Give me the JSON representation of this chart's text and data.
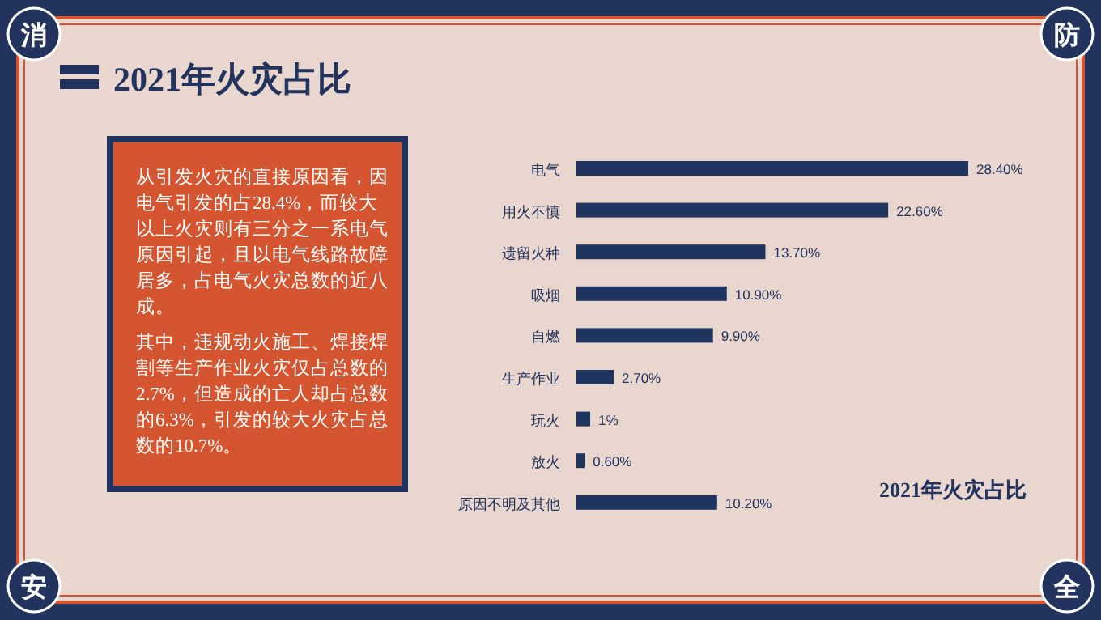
{
  "chart_data": {
    "type": "bar",
    "orientation": "horizontal",
    "title": "2021年火灾占比",
    "categories": [
      "电气",
      "用火不慎",
      "遗留火种",
      "吸烟",
      "自燃",
      "生产作业",
      "玩火",
      "放火",
      "原因不明及其他"
    ],
    "values": [
      28.4,
      22.6,
      13.7,
      10.9,
      9.9,
      2.7,
      1,
      0.6,
      10.2
    ],
    "value_labels": [
      "28.40%",
      "22.60%",
      "13.70%",
      "10.90%",
      "9.90%",
      "2.70%",
      "1%",
      "0.60%",
      "10.20%"
    ],
    "color": "#1f3560",
    "annotations": [
      "从引发火灾的直接原因看，因电气引发的占28.4%，而较大以上火灾则有三分之一系电气原因引起，且以电气线路故障居多，占电气火灾总数的近八成。",
      "其中，违规动火施工、焊接焊割等生产作业火灾仅占总数的2.7%，但造成的亡人却占总数的6.3%，引发的较大火灾占总数的10.7%。",
      "2021年火灾占比",
      "消",
      "防",
      "安",
      "全"
    ]
  }
}
